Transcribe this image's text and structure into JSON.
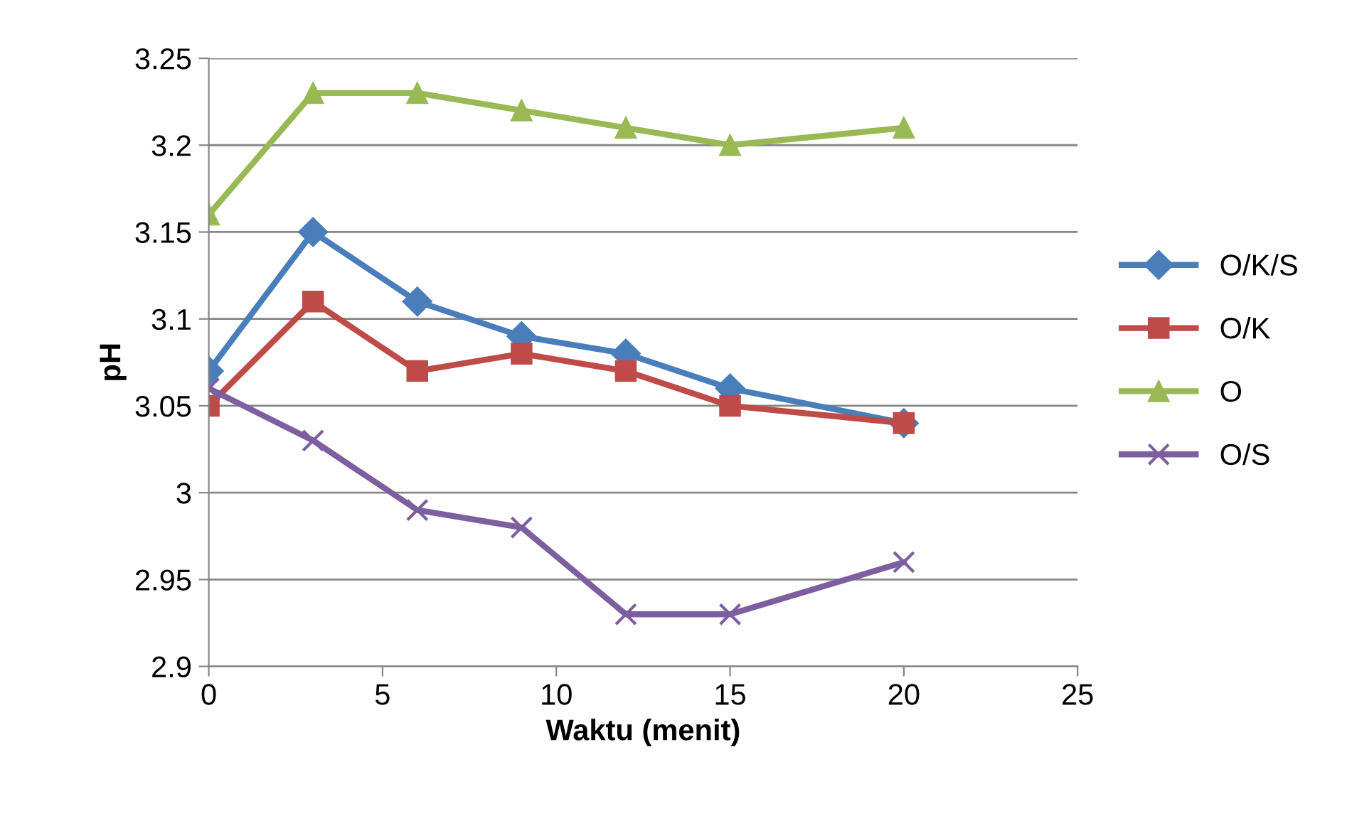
{
  "chart_data": {
    "type": "line",
    "xlabel": "Waktu (menit)",
    "ylabel": "pH",
    "x": [
      0,
      3,
      6,
      9,
      12,
      15,
      20
    ],
    "series": [
      {
        "name": "O/K/S",
        "color": "#4a7ebb",
        "marker": "diamond",
        "values": [
          3.07,
          3.15,
          3.11,
          3.09,
          3.08,
          3.06,
          3.04
        ]
      },
      {
        "name": "O/K",
        "color": "#be4b48",
        "marker": "square",
        "values": [
          3.05,
          3.11,
          3.07,
          3.08,
          3.07,
          3.05,
          3.04
        ]
      },
      {
        "name": "O",
        "color": "#98b954",
        "marker": "triangle",
        "values": [
          3.16,
          3.23,
          3.23,
          3.22,
          3.21,
          3.2,
          3.21
        ]
      },
      {
        "name": "O/S",
        "color": "#7d5fa0",
        "marker": "cross",
        "values": [
          3.06,
          3.03,
          2.99,
          2.98,
          2.93,
          2.93,
          2.96
        ]
      }
    ],
    "xlim": [
      0,
      25
    ],
    "xticks": [
      0,
      5,
      10,
      15,
      20,
      25
    ],
    "ylim": [
      2.9,
      3.25
    ],
    "yticks": [
      2.9,
      2.95,
      3,
      3.05,
      3.1,
      3.15,
      3.2,
      3.25
    ],
    "grid": "y",
    "legend": "right"
  }
}
